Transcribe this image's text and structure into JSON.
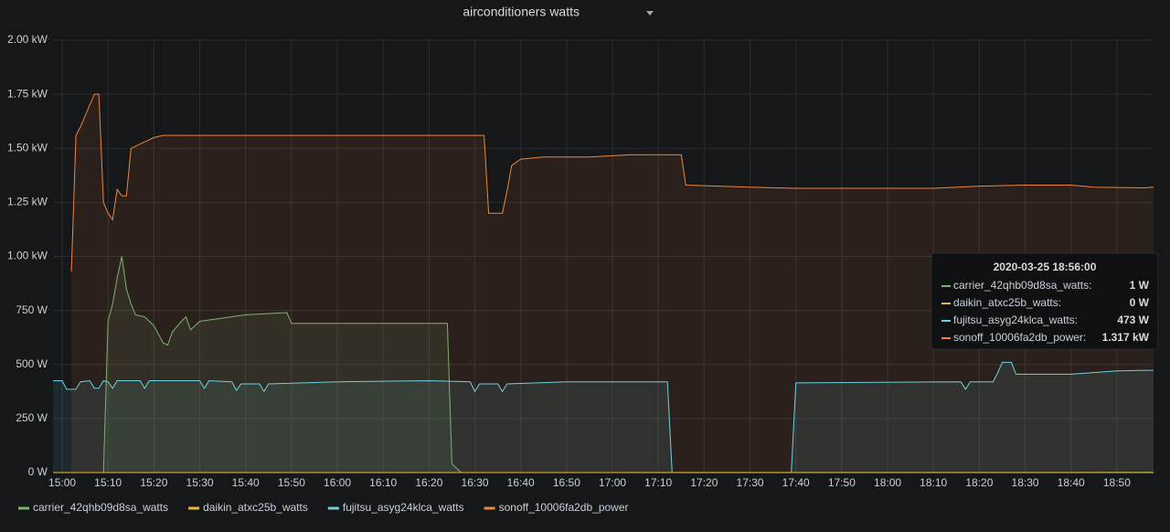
{
  "chart_data": {
    "type": "line",
    "title": "airconditioners watts",
    "xlim": [
      "14:58",
      "18:58"
    ],
    "ylim": [
      0,
      2000
    ],
    "xticks": [
      "15:00",
      "15:10",
      "15:20",
      "15:30",
      "15:40",
      "15:50",
      "16:00",
      "16:10",
      "16:20",
      "16:30",
      "16:40",
      "16:50",
      "17:00",
      "17:10",
      "17:20",
      "17:30",
      "17:40",
      "17:50",
      "18:00",
      "18:10",
      "18:20",
      "18:30",
      "18:40",
      "18:50"
    ],
    "yticks": [
      {
        "value": 0,
        "label": "0 W"
      },
      {
        "value": 250,
        "label": "250 W"
      },
      {
        "value": 500,
        "label": "500 W"
      },
      {
        "value": 750,
        "label": "750 W"
      },
      {
        "value": 1000,
        "label": "1.00 kW"
      },
      {
        "value": 1250,
        "label": "1.25 kW"
      },
      {
        "value": 1500,
        "label": "1.50 kW"
      },
      {
        "value": 1750,
        "label": "1.75 kW"
      },
      {
        "value": 2000,
        "label": "2.00 kW"
      }
    ],
    "grid": true,
    "area_fill": true,
    "series": [
      {
        "name": "carrier_42qhb09d8sa_watts",
        "color": "#7eb26d",
        "x": [
          "14:58",
          "15:09",
          "15:10",
          "15:11",
          "15:12",
          "15:13",
          "15:14",
          "15:15",
          "15:16",
          "15:18",
          "15:20",
          "15:22",
          "15:23",
          "15:24",
          "15:26",
          "15:27",
          "15:28",
          "15:30",
          "15:40",
          "15:49",
          "15:50",
          "16:24",
          "16:25",
          "16:27",
          "18:56",
          "18:58"
        ],
        "values": [
          0,
          0,
          700,
          780,
          900,
          1000,
          850,
          780,
          730,
          720,
          680,
          600,
          590,
          650,
          700,
          720,
          660,
          700,
          730,
          740,
          690,
          690,
          40,
          0,
          1,
          1
        ]
      },
      {
        "name": "daikin_atxc25b_watts",
        "color": "#eab839",
        "x": [
          "14:58",
          "18:58"
        ],
        "values": [
          0,
          0
        ]
      },
      {
        "name": "fujitsu_asyg24klca_watts",
        "color": "#6ed0e0",
        "x": [
          "14:58",
          "15:00",
          "15:01",
          "15:03",
          "15:04",
          "15:06",
          "15:07",
          "15:08",
          "15:09",
          "15:10",
          "15:11",
          "15:12",
          "15:17",
          "15:18",
          "15:19",
          "15:30",
          "15:31",
          "15:32",
          "15:37",
          "15:38",
          "15:39",
          "15:43",
          "15:44",
          "15:45",
          "16:00",
          "16:20",
          "16:29",
          "16:30",
          "16:31",
          "16:35",
          "16:36",
          "16:37",
          "16:50",
          "17:12",
          "17:13",
          "17:39",
          "17:40",
          "18:16",
          "18:17",
          "18:18",
          "18:23",
          "18:24",
          "18:25",
          "18:27",
          "18:28",
          "18:40",
          "18:50",
          "18:56",
          "18:58"
        ],
        "values": [
          425,
          425,
          385,
          385,
          420,
          425,
          390,
          390,
          425,
          420,
          390,
          425,
          425,
          390,
          425,
          425,
          390,
          425,
          420,
          380,
          410,
          410,
          375,
          410,
          420,
          425,
          420,
          375,
          410,
          410,
          375,
          410,
          420,
          420,
          0,
          0,
          415,
          420,
          385,
          420,
          420,
          460,
          510,
          510,
          455,
          455,
          470,
          473,
          473
        ]
      },
      {
        "name": "sonoff_10006fa2db_power",
        "color": "#ef843c",
        "x": [
          "15:02",
          "15:03",
          "15:04",
          "15:05",
          "15:06",
          "15:07",
          "15:08",
          "15:09",
          "15:10",
          "15:11",
          "15:12",
          "15:13",
          "15:14",
          "15:15",
          "15:16",
          "15:18",
          "15:20",
          "15:22",
          "16:32",
          "16:33",
          "16:36",
          "16:37",
          "16:38",
          "16:40",
          "16:45",
          "16:55",
          "17:04",
          "17:15",
          "17:16",
          "17:30",
          "17:40",
          "18:10",
          "18:20",
          "18:30",
          "18:40",
          "18:45",
          "18:56",
          "18:58"
        ],
        "values": [
          930,
          1560,
          1600,
          1650,
          1700,
          1750,
          1750,
          1250,
          1200,
          1170,
          1310,
          1280,
          1280,
          1500,
          1510,
          1530,
          1550,
          1560,
          1560,
          1200,
          1200,
          1300,
          1420,
          1450,
          1460,
          1460,
          1470,
          1470,
          1330,
          1320,
          1315,
          1315,
          1325,
          1330,
          1330,
          1320,
          1317,
          1320
        ]
      }
    ],
    "tooltip": {
      "time": "2020-03-25 18:56:00",
      "rows": [
        {
          "label": "carrier_42qhb09d8sa_watts:",
          "value": 1,
          "value_label": "1 W"
        },
        {
          "label": "daikin_atxc25b_watts:",
          "value": 0,
          "value_label": "0 W"
        },
        {
          "label": "fujitsu_asyg24klca_watts:",
          "value": 473,
          "value_label": "473 W"
        },
        {
          "label": "sonoff_10006fa2db_power:",
          "value": 1317,
          "value_label": "1.317 kW"
        }
      ]
    }
  }
}
